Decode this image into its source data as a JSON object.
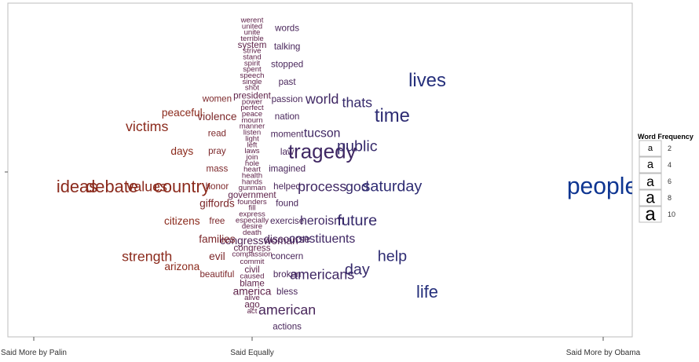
{
  "chart_data": {
    "type": "word-cloud-scatter",
    "title": "",
    "xlabel": "",
    "ylabel": "",
    "x_ticks": [
      "Said More by Palin",
      "Said Equally",
      "Said More by Obama"
    ],
    "colors": {
      "palin": "#8b2a1c",
      "equal": "#5c1f47",
      "obama": "#0e3591"
    },
    "legend": {
      "title": "Word Frequency",
      "sample": "a",
      "sizes": [
        2,
        4,
        6,
        8,
        10
      ]
    },
    "words": [
      {
        "w": "werent",
        "x": 0,
        "y": 1.0,
        "f": 1
      },
      {
        "w": "united",
        "x": 0,
        "y": 0.98,
        "f": 1
      },
      {
        "w": "unite",
        "x": 0,
        "y": 0.96,
        "f": 1
      },
      {
        "w": "terrible",
        "x": 0,
        "y": 0.94,
        "f": 1
      },
      {
        "w": "system",
        "x": 0,
        "y": 0.92,
        "f": 1.5
      },
      {
        "w": "strive",
        "x": 0,
        "y": 0.9,
        "f": 1
      },
      {
        "w": "stand",
        "x": 0,
        "y": 0.88,
        "f": 1
      },
      {
        "w": "spirit",
        "x": 0,
        "y": 0.86,
        "f": 1
      },
      {
        "w": "spent",
        "x": 0,
        "y": 0.84,
        "f": 1
      },
      {
        "w": "speech",
        "x": 0,
        "y": 0.82,
        "f": 1
      },
      {
        "w": "single",
        "x": 0,
        "y": 0.8,
        "f": 1
      },
      {
        "w": "shot",
        "x": 0,
        "y": 0.78,
        "f": 1
      },
      {
        "w": "president",
        "x": 0,
        "y": 0.755,
        "f": 1.5
      },
      {
        "w": "power",
        "x": 0,
        "y": 0.735,
        "f": 1
      },
      {
        "w": "perfect",
        "x": 0,
        "y": 0.715,
        "f": 1
      },
      {
        "w": "peace",
        "x": 0,
        "y": 0.695,
        "f": 1
      },
      {
        "w": "mourn",
        "x": 0,
        "y": 0.675,
        "f": 1
      },
      {
        "w": "manner",
        "x": 0,
        "y": 0.655,
        "f": 1
      },
      {
        "w": "listen",
        "x": 0,
        "y": 0.635,
        "f": 1
      },
      {
        "w": "light",
        "x": 0,
        "y": 0.615,
        "f": 1
      },
      {
        "w": "left",
        "x": 0,
        "y": 0.595,
        "f": 1
      },
      {
        "w": "laws",
        "x": 0,
        "y": 0.575,
        "f": 1
      },
      {
        "w": "join",
        "x": 0,
        "y": 0.555,
        "f": 1
      },
      {
        "w": "hole",
        "x": 0,
        "y": 0.535,
        "f": 1
      },
      {
        "w": "heart",
        "x": 0,
        "y": 0.515,
        "f": 1
      },
      {
        "w": "health",
        "x": 0,
        "y": 0.495,
        "f": 1
      },
      {
        "w": "hands",
        "x": 0,
        "y": 0.475,
        "f": 1
      },
      {
        "w": "gunman",
        "x": 0,
        "y": 0.455,
        "f": 1
      },
      {
        "w": "government",
        "x": 0,
        "y": 0.432,
        "f": 1.5
      },
      {
        "w": "founders",
        "x": 0,
        "y": 0.41,
        "f": 1
      },
      {
        "w": "fill",
        "x": 0,
        "y": 0.39,
        "f": 1
      },
      {
        "w": "express",
        "x": 0,
        "y": 0.37,
        "f": 1
      },
      {
        "w": "especially",
        "x": 0,
        "y": 0.35,
        "f": 1
      },
      {
        "w": "desire",
        "x": 0,
        "y": 0.33,
        "f": 1
      },
      {
        "w": "death",
        "x": 0,
        "y": 0.31,
        "f": 1
      },
      {
        "w": "congresswoman",
        "x": 0.02,
        "y": 0.285,
        "f": 2
      },
      {
        "w": "congress",
        "x": 0,
        "y": 0.26,
        "f": 1.5
      },
      {
        "w": "compassion",
        "x": 0,
        "y": 0.24,
        "f": 1
      },
      {
        "w": "commit",
        "x": 0,
        "y": 0.215,
        "f": 1
      },
      {
        "w": "civil",
        "x": 0,
        "y": 0.19,
        "f": 1.5
      },
      {
        "w": "caused",
        "x": 0,
        "y": 0.168,
        "f": 1
      },
      {
        "w": "blame",
        "x": 0,
        "y": 0.145,
        "f": 1.5
      },
      {
        "w": "america",
        "x": 0,
        "y": 0.12,
        "f": 2
      },
      {
        "w": "alive",
        "x": 0,
        "y": 0.098,
        "f": 1
      },
      {
        "w": "ago",
        "x": 0,
        "y": 0.076,
        "f": 1.5
      },
      {
        "w": "act",
        "x": 0,
        "y": 0.055,
        "f": 1
      },
      {
        "w": "words",
        "x": 0.1,
        "y": 0.975,
        "f": 1.5
      },
      {
        "w": "talking",
        "x": 0.1,
        "y": 0.915,
        "f": 1.5
      },
      {
        "w": "stopped",
        "x": 0.1,
        "y": 0.857,
        "f": 1.5
      },
      {
        "w": "past",
        "x": 0.1,
        "y": 0.8,
        "f": 1.5
      },
      {
        "w": "passion",
        "x": 0.1,
        "y": 0.743,
        "f": 1.5
      },
      {
        "w": "nation",
        "x": 0.1,
        "y": 0.688,
        "f": 1.5
      },
      {
        "w": "moment",
        "x": 0.1,
        "y": 0.63,
        "f": 1.5
      },
      {
        "w": "law",
        "x": 0.1,
        "y": 0.573,
        "f": 1.5
      },
      {
        "w": "imagined",
        "x": 0.1,
        "y": 0.518,
        "f": 1.5
      },
      {
        "w": "helped",
        "x": 0.1,
        "y": 0.46,
        "f": 1.5
      },
      {
        "w": "found",
        "x": 0.1,
        "y": 0.405,
        "f": 1.5
      },
      {
        "w": "exercise",
        "x": 0.1,
        "y": 0.348,
        "f": 1.5
      },
      {
        "w": "discourse",
        "x": 0.1,
        "y": 0.29,
        "f": 2
      },
      {
        "w": "concern",
        "x": 0.1,
        "y": 0.233,
        "f": 1.5
      },
      {
        "w": "broken",
        "x": 0.1,
        "y": 0.175,
        "f": 1.5
      },
      {
        "w": "bless",
        "x": 0.1,
        "y": 0.118,
        "f": 1.5
      },
      {
        "w": "american",
        "x": 0.1,
        "y": 0.06,
        "f": 3
      },
      {
        "w": "actions",
        "x": 0.1,
        "y": 0.005,
        "f": 1.5
      },
      {
        "w": "women",
        "x": -0.1,
        "y": 0.745,
        "f": 1.5
      },
      {
        "w": "violence",
        "x": -0.1,
        "y": 0.688,
        "f": 2
      },
      {
        "w": "read",
        "x": -0.1,
        "y": 0.633,
        "f": 1.5
      },
      {
        "w": "pray",
        "x": -0.1,
        "y": 0.575,
        "f": 1.5
      },
      {
        "w": "mass",
        "x": -0.1,
        "y": 0.518,
        "f": 1.5
      },
      {
        "w": "honor",
        "x": -0.1,
        "y": 0.46,
        "f": 1.5
      },
      {
        "w": "giffords",
        "x": -0.1,
        "y": 0.405,
        "f": 2
      },
      {
        "w": "free",
        "x": -0.1,
        "y": 0.348,
        "f": 1.5
      },
      {
        "w": "families",
        "x": -0.1,
        "y": 0.29,
        "f": 2
      },
      {
        "w": "evil",
        "x": -0.1,
        "y": 0.233,
        "f": 2
      },
      {
        "w": "beautiful",
        "x": -0.1,
        "y": 0.175,
        "f": 1.5
      },
      {
        "w": "peaceful",
        "x": -0.2,
        "y": 0.7,
        "f": 2
      },
      {
        "w": "victims",
        "x": -0.3,
        "y": 0.655,
        "f": 3
      },
      {
        "w": "days",
        "x": -0.2,
        "y": 0.575,
        "f": 2
      },
      {
        "w": "country",
        "x": -0.2,
        "y": 0.46,
        "f": 4
      },
      {
        "w": "values",
        "x": -0.3,
        "y": 0.46,
        "f": 3
      },
      {
        "w": "debate",
        "x": -0.4,
        "y": 0.46,
        "f": 4
      },
      {
        "w": "ideas",
        "x": -0.5,
        "y": 0.46,
        "f": 4
      },
      {
        "w": "citizens",
        "x": -0.2,
        "y": 0.348,
        "f": 2
      },
      {
        "w": "strength",
        "x": -0.3,
        "y": 0.233,
        "f": 3
      },
      {
        "w": "arizona",
        "x": -0.2,
        "y": 0.2,
        "f": 2
      },
      {
        "w": "world",
        "x": 0.2,
        "y": 0.745,
        "f": 3
      },
      {
        "w": "tucson",
        "x": 0.2,
        "y": 0.633,
        "f": 2.5
      },
      {
        "w": "tragedy",
        "x": 0.2,
        "y": 0.575,
        "f": 5
      },
      {
        "w": "process",
        "x": 0.2,
        "y": 0.46,
        "f": 3
      },
      {
        "w": "heroism",
        "x": 0.2,
        "y": 0.348,
        "f": 2.5
      },
      {
        "w": "constituents",
        "x": 0.2,
        "y": 0.29,
        "f": 2.5
      },
      {
        "w": "americans",
        "x": 0.2,
        "y": 0.175,
        "f": 3
      },
      {
        "w": "thats",
        "x": 0.3,
        "y": 0.733,
        "f": 3
      },
      {
        "w": "public",
        "x": 0.3,
        "y": 0.59,
        "f": 3.5
      },
      {
        "w": "god",
        "x": 0.3,
        "y": 0.46,
        "f": 3
      },
      {
        "w": "future",
        "x": 0.3,
        "y": 0.35,
        "f": 3.5
      },
      {
        "w": "day",
        "x": 0.3,
        "y": 0.19,
        "f": 3.5
      },
      {
        "w": "time",
        "x": 0.4,
        "y": 0.69,
        "f": 4.5
      },
      {
        "w": "saturday",
        "x": 0.4,
        "y": 0.46,
        "f": 3.5
      },
      {
        "w": "help",
        "x": 0.4,
        "y": 0.233,
        "f": 3.5
      },
      {
        "w": "lives",
        "x": 0.5,
        "y": 0.805,
        "f": 4.5
      },
      {
        "w": "life",
        "x": 0.5,
        "y": 0.118,
        "f": 4
      },
      {
        "w": "people",
        "x": 1.0,
        "y": 0.46,
        "f": 6
      }
    ]
  }
}
